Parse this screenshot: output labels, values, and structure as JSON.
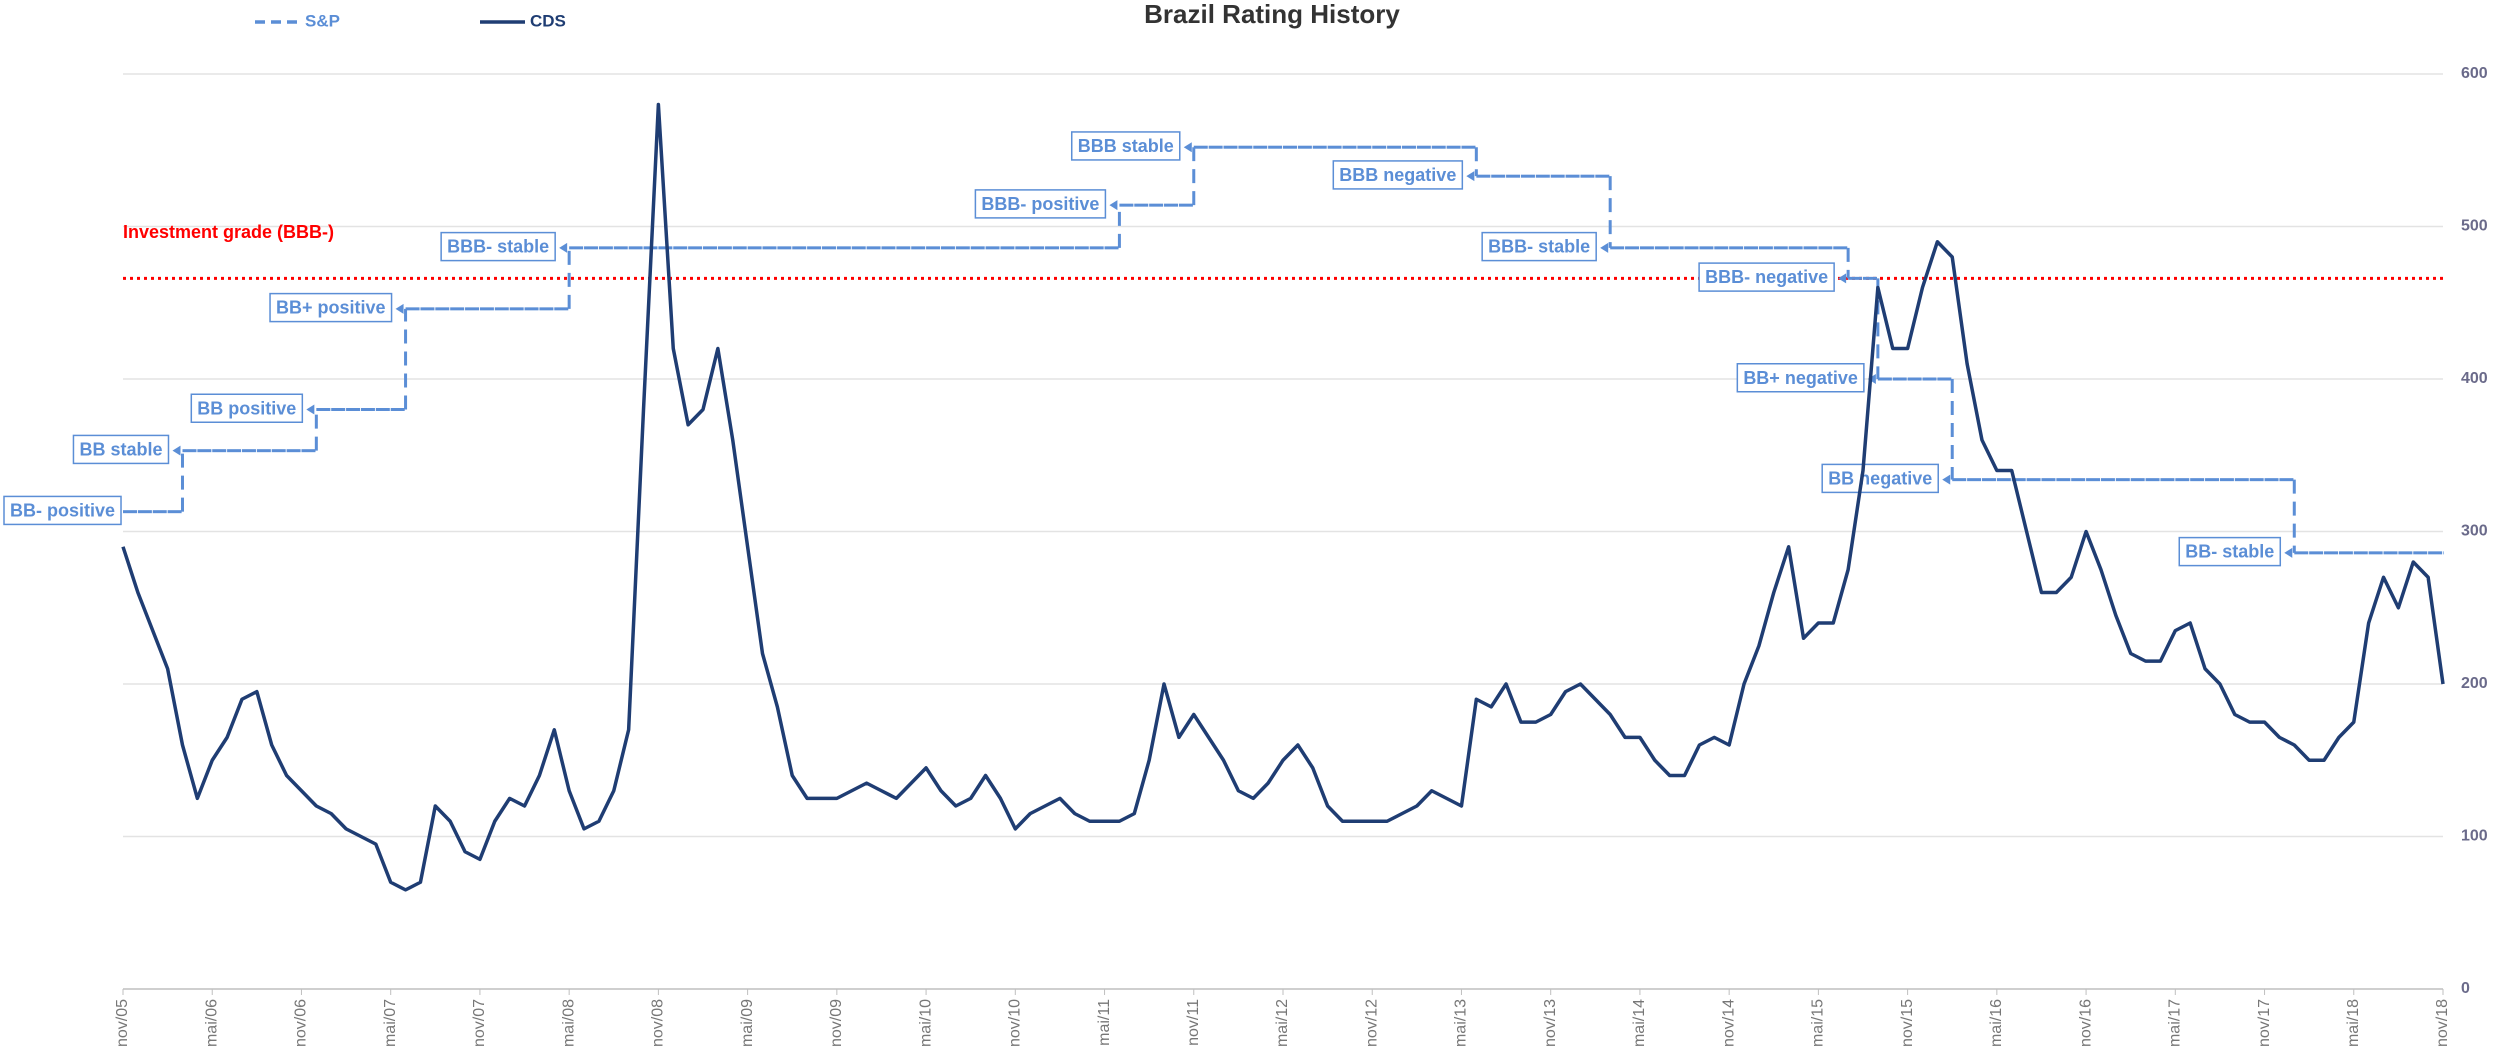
{
  "chart_data": {
    "type": "line",
    "title": "Brazil Rating History",
    "categories": [
      "nov/05",
      null,
      null,
      null,
      null,
      null,
      "mai/06",
      null,
      null,
      null,
      null,
      null,
      "nov/06",
      null,
      null,
      null,
      null,
      null,
      "mai/07",
      null,
      null,
      null,
      null,
      null,
      "nov/07",
      null,
      null,
      null,
      null,
      null,
      "mai/08",
      null,
      null,
      null,
      null,
      null,
      "nov/08",
      null,
      null,
      null,
      null,
      null,
      "mai/09",
      null,
      null,
      null,
      null,
      null,
      "nov/09",
      null,
      null,
      null,
      null,
      null,
      "mai/10",
      null,
      null,
      null,
      null,
      null,
      "nov/10",
      null,
      null,
      null,
      null,
      null,
      "mai/11",
      null,
      null,
      null,
      null,
      null,
      "nov/11",
      null,
      null,
      null,
      null,
      null,
      "mai/12",
      null,
      null,
      null,
      null,
      null,
      "nov/12",
      null,
      null,
      null,
      null,
      null,
      "mai/13",
      null,
      null,
      null,
      null,
      null,
      "nov/13",
      null,
      null,
      null,
      null,
      null,
      "mai/14",
      null,
      null,
      null,
      null,
      null,
      "nov/14",
      null,
      null,
      null,
      null,
      null,
      "mai/15",
      null,
      null,
      null,
      null,
      null,
      "nov/15",
      null,
      null,
      null,
      null,
      null,
      "mai/16",
      null,
      null,
      null,
      null,
      null,
      "nov/16",
      null,
      null,
      null,
      null,
      null,
      "mai/17",
      null,
      null,
      null,
      null,
      null,
      "nov/17",
      null,
      null,
      null,
      null,
      null,
      "mai/18",
      null,
      null,
      null,
      null,
      null,
      "nov/18"
    ],
    "series": [
      {
        "name": "S&P",
        "color": "#5b8ed6",
        "dashed": true,
        "step": true,
        "values": [
          313,
          313,
          313,
          313,
          353,
          353,
          353,
          353,
          353,
          353,
          353,
          353,
          353,
          380,
          380,
          380,
          380,
          380,
          380,
          446,
          446,
          446,
          446,
          446,
          446,
          446,
          446,
          446,
          446,
          446,
          486,
          486,
          486,
          486,
          486,
          486,
          486,
          486,
          486,
          486,
          486,
          486,
          486,
          486,
          486,
          486,
          486,
          486,
          486,
          486,
          486,
          486,
          486,
          486,
          486,
          486,
          486,
          486,
          486,
          486,
          486,
          486,
          486,
          486,
          486,
          486,
          486,
          514,
          514,
          514,
          514,
          514,
          552,
          552,
          552,
          552,
          552,
          552,
          552,
          552,
          552,
          552,
          552,
          552,
          552,
          552,
          552,
          552,
          552,
          552,
          552,
          533,
          533,
          533,
          533,
          533,
          533,
          533,
          533,
          533,
          486,
          486,
          486,
          486,
          486,
          486,
          486,
          486,
          486,
          486,
          486,
          486,
          486,
          486,
          486,
          486,
          466,
          466,
          400,
          400,
          400,
          400,
          400,
          334,
          334,
          334,
          334,
          334,
          334,
          334,
          334,
          334,
          334,
          334,
          334,
          334,
          334,
          334,
          334,
          334,
          334,
          334,
          334,
          334,
          334,
          334,
          286,
          286,
          286,
          286,
          286,
          286,
          286,
          286,
          286,
          286,
          286
        ],
        "annotations": [
          "BB- positive",
          "BB stable",
          "BB positive",
          "BB+ positive",
          "BBB- stable",
          "BBB- positive",
          "BBB stable",
          "BBB negative",
          "BBB- stable",
          "BBB- negative",
          "BB+ negative",
          "BB negative",
          "BB- stable"
        ]
      },
      {
        "name": "CDS",
        "color": "#1f3d73",
        "values": [
          290,
          260,
          235,
          210,
          160,
          125,
          150,
          165,
          190,
          195,
          160,
          140,
          130,
          120,
          115,
          105,
          100,
          95,
          70,
          65,
          70,
          120,
          110,
          90,
          85,
          110,
          125,
          120,
          140,
          170,
          130,
          105,
          110,
          130,
          170,
          380,
          580,
          420,
          370,
          380,
          420,
          360,
          290,
          220,
          185,
          140,
          125,
          125,
          125,
          130,
          135,
          130,
          125,
          135,
          145,
          130,
          120,
          125,
          140,
          125,
          105,
          115,
          120,
          125,
          115,
          110,
          110,
          110,
          115,
          150,
          200,
          165,
          180,
          165,
          150,
          130,
          125,
          135,
          150,
          160,
          145,
          120,
          110,
          110,
          110,
          110,
          115,
          120,
          130,
          125,
          120,
          190,
          185,
          200,
          175,
          175,
          180,
          195,
          200,
          190,
          180,
          165,
          165,
          150,
          140,
          140,
          160,
          165,
          160,
          200,
          225,
          260,
          290,
          230,
          240,
          240,
          275,
          340,
          460,
          420,
          420,
          460,
          490,
          480,
          410,
          360,
          340,
          340,
          300,
          260,
          260,
          270,
          300,
          275,
          245,
          220,
          215,
          215,
          235,
          240,
          210,
          200,
          180,
          175,
          175,
          165,
          160,
          150,
          150,
          165,
          175,
          240,
          270,
          250,
          280,
          270,
          200
        ]
      }
    ],
    "reference_line": {
      "label": "Investment grade (BBB-)",
      "value": 466,
      "color": "#ff0000"
    },
    "ylim": [
      0,
      600
    ],
    "yticks": [
      0,
      100,
      200,
      300,
      400,
      500,
      600
    ],
    "y_axis_side": "right",
    "grid": true,
    "legend": "top-left"
  }
}
